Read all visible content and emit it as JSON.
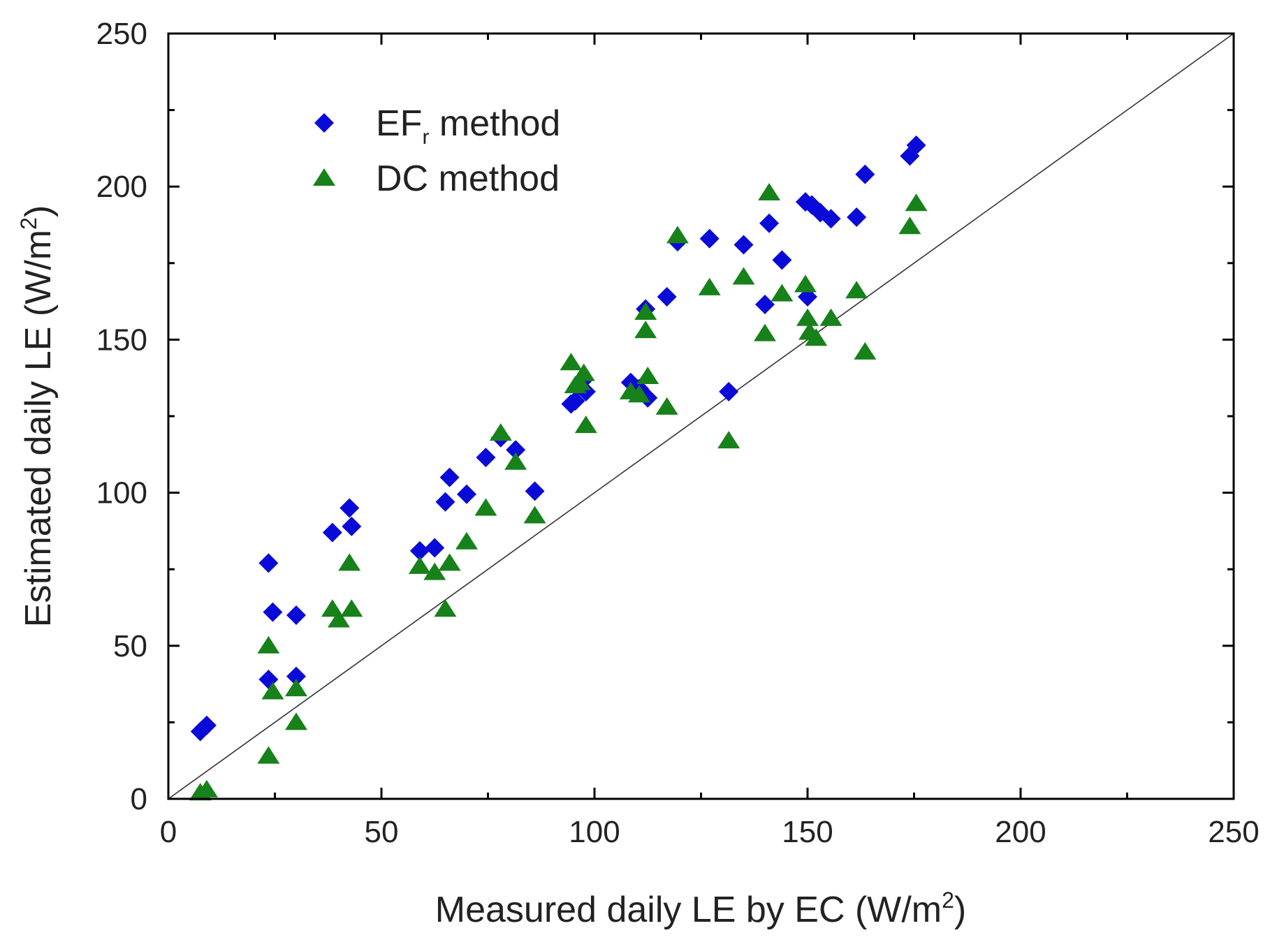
{
  "chart_data": {
    "type": "scatter",
    "xlabel": {
      "main": "Measured daily LE by EC (W/m",
      "sup": "2",
      "end": ")"
    },
    "ylabel": {
      "main": "Estimated daily LE (W/m",
      "sup": "2",
      "end": ")"
    },
    "xlim": [
      0,
      250
    ],
    "ylim": [
      0,
      250
    ],
    "xticks": [
      0,
      50,
      100,
      150,
      200,
      250
    ],
    "yticks": [
      0,
      50,
      100,
      150,
      200,
      250
    ],
    "grid": false,
    "legend_position": "top-left",
    "reference_line": {
      "name": "1:1 line",
      "from": [
        0,
        0
      ],
      "to": [
        250,
        250
      ],
      "color": "#333333"
    },
    "series": [
      {
        "name": "EFr method",
        "legend": {
          "base": "EF",
          "sub": "r",
          "rest": " method"
        },
        "marker": "diamond",
        "color": "#0a0ad8",
        "points": [
          [
            7.5,
            22
          ],
          [
            9,
            24
          ],
          [
            23.5,
            77
          ],
          [
            23.5,
            39
          ],
          [
            24.5,
            61
          ],
          [
            30,
            60
          ],
          [
            30,
            40
          ],
          [
            38.5,
            87
          ],
          [
            42.5,
            95
          ],
          [
            43,
            89
          ],
          [
            59,
            81
          ],
          [
            62.5,
            82
          ],
          [
            65,
            97
          ],
          [
            66,
            105
          ],
          [
            70,
            99.5
          ],
          [
            74.5,
            111.5
          ],
          [
            78,
            118
          ],
          [
            81.5,
            114
          ],
          [
            86,
            100.5
          ],
          [
            94.5,
            129
          ],
          [
            95.5,
            130
          ],
          [
            96.5,
            135
          ],
          [
            97.5,
            137
          ],
          [
            98,
            133
          ],
          [
            108.5,
            136
          ],
          [
            110.5,
            134
          ],
          [
            112,
            160
          ],
          [
            112.5,
            131
          ],
          [
            117,
            164
          ],
          [
            119.5,
            182
          ],
          [
            127,
            183
          ],
          [
            131.5,
            133
          ],
          [
            135,
            181
          ],
          [
            140,
            161.5
          ],
          [
            141,
            188
          ],
          [
            144,
            176
          ],
          [
            149.5,
            195
          ],
          [
            150,
            164
          ],
          [
            151,
            194
          ],
          [
            153,
            191.5
          ],
          [
            155.5,
            189.5
          ],
          [
            161.5,
            190
          ],
          [
            163.5,
            204
          ],
          [
            174,
            210
          ],
          [
            175.5,
            213.5
          ]
        ]
      },
      {
        "name": "DC method",
        "legend": {
          "base": "DC",
          "sub": "",
          "rest": " method"
        },
        "marker": "triangle",
        "color": "#17811a",
        "points": [
          [
            7.5,
            2
          ],
          [
            9,
            3
          ],
          [
            23.5,
            50
          ],
          [
            23.5,
            14
          ],
          [
            24.5,
            35
          ],
          [
            30,
            36
          ],
          [
            30,
            25
          ],
          [
            38.5,
            62
          ],
          [
            40,
            58.5
          ],
          [
            42.5,
            77
          ],
          [
            43,
            62
          ],
          [
            59,
            76
          ],
          [
            62.5,
            74
          ],
          [
            65,
            62
          ],
          [
            66,
            77
          ],
          [
            70,
            84
          ],
          [
            74.5,
            95
          ],
          [
            78,
            119.5
          ],
          [
            81.5,
            110
          ],
          [
            86,
            92.5
          ],
          [
            94.5,
            142.5
          ],
          [
            95.5,
            135
          ],
          [
            96.5,
            136
          ],
          [
            97.5,
            139
          ],
          [
            98,
            122
          ],
          [
            108.5,
            133
          ],
          [
            110.5,
            132
          ],
          [
            112,
            153
          ],
          [
            112,
            159
          ],
          [
            112.5,
            138
          ],
          [
            117,
            128
          ],
          [
            119.5,
            184
          ],
          [
            127,
            167
          ],
          [
            131.5,
            117
          ],
          [
            135,
            170.5
          ],
          [
            140,
            152
          ],
          [
            141,
            198
          ],
          [
            144,
            165
          ],
          [
            149.5,
            168
          ],
          [
            150,
            157
          ],
          [
            150.5,
            152.5
          ],
          [
            152,
            150.5
          ],
          [
            155.5,
            157
          ],
          [
            161.5,
            166
          ],
          [
            163.5,
            146
          ],
          [
            174,
            187
          ],
          [
            175.5,
            194.5
          ]
        ]
      }
    ]
  }
}
